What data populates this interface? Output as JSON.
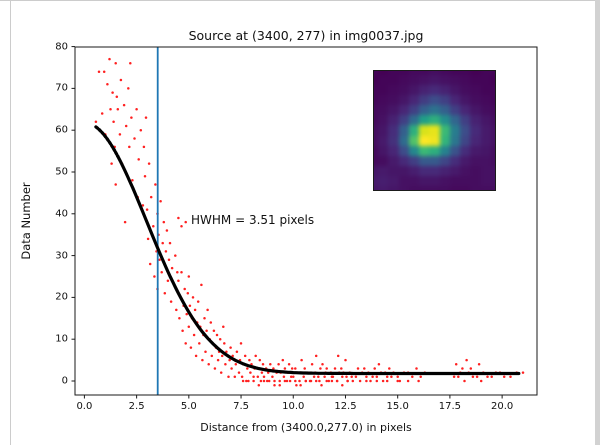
{
  "window": {
    "background": "#ffffff",
    "border_color": "#cccccc",
    "scrollbar_color": "#d2d2d2"
  },
  "chart_data": {
    "type": "scatter",
    "title": "Source at (3400, 277) in img0037.jpg",
    "xlabel": "Distance from (3400.0,277.0) in pixels",
    "ylabel": "Data Number",
    "xlim": [
      -0.45,
      21.67
    ],
    "ylim": [
      -3.35,
      79.9
    ],
    "grid": false,
    "legend": "none",
    "x_ticks": {
      "values": [
        0.0,
        2.5,
        5.0,
        7.5,
        10.0,
        12.5,
        15.0,
        17.5,
        20.0
      ],
      "labels": [
        "0.0",
        "2.5",
        "5.0",
        "7.5",
        "10.0",
        "12.5",
        "15.0",
        "17.5",
        "20.0"
      ]
    },
    "y_ticks": {
      "values": [
        0,
        10,
        20,
        30,
        40,
        50,
        60,
        70,
        80
      ],
      "labels": [
        "0",
        "10",
        "20",
        "30",
        "40",
        "50",
        "60",
        "70",
        "80"
      ]
    },
    "scatter_color": "#ff2020",
    "fit_color": "#000000",
    "vline_color": "#1f77b4",
    "vline_x": 3.51,
    "annotation": {
      "text": "HWHM = 3.51 pixels",
      "x": 5.1,
      "y": 38.0
    },
    "fit": {
      "model": "gaussian_plus_offset",
      "amplitude": 60.0,
      "sigma": 2.98,
      "offset": 1.8,
      "hwhm_pixels": 3.51,
      "x_range": [
        0.55,
        20.8
      ]
    },
    "scatter": [
      [
        0.55,
        62
      ],
      [
        0.7,
        74
      ],
      [
        0.85,
        64
      ],
      [
        0.95,
        74
      ],
      [
        1.0,
        59
      ],
      [
        1.1,
        71
      ],
      [
        1.2,
        77
      ],
      [
        1.25,
        65
      ],
      [
        1.3,
        52
      ],
      [
        1.35,
        69
      ],
      [
        1.4,
        62
      ],
      [
        1.45,
        56
      ],
      [
        1.5,
        76
      ],
      [
        1.5,
        47
      ],
      [
        1.55,
        68
      ],
      [
        1.6,
        65
      ],
      [
        1.7,
        59
      ],
      [
        1.75,
        72
      ],
      [
        1.8,
        52
      ],
      [
        1.9,
        66
      ],
      [
        1.95,
        38
      ],
      [
        2.0,
        61
      ],
      [
        2.1,
        70
      ],
      [
        2.15,
        56
      ],
      [
        2.2,
        76
      ],
      [
        2.25,
        63
      ],
      [
        2.3,
        48
      ],
      [
        2.4,
        58
      ],
      [
        2.5,
        65
      ],
      [
        2.55,
        44
      ],
      [
        2.6,
        53
      ],
      [
        2.7,
        60
      ],
      [
        2.8,
        42
      ],
      [
        2.85,
        56
      ],
      [
        2.9,
        49
      ],
      [
        2.95,
        63
      ],
      [
        3.0,
        41
      ],
      [
        3.05,
        34
      ],
      [
        3.1,
        52
      ],
      [
        3.15,
        28
      ],
      [
        3.2,
        44
      ],
      [
        3.3,
        37
      ],
      [
        3.35,
        25
      ],
      [
        3.4,
        47
      ],
      [
        3.45,
        31
      ],
      [
        3.5,
        40
      ],
      [
        3.5,
        22
      ],
      [
        3.55,
        35
      ],
      [
        3.6,
        29
      ],
      [
        3.65,
        43
      ],
      [
        3.7,
        26
      ],
      [
        3.75,
        33
      ],
      [
        3.8,
        38
      ],
      [
        3.85,
        21
      ],
      [
        3.9,
        31
      ],
      [
        3.95,
        36
      ],
      [
        4.0,
        24
      ],
      [
        4.05,
        29
      ],
      [
        4.1,
        33
      ],
      [
        4.15,
        19
      ],
      [
        4.2,
        27
      ],
      [
        4.3,
        23
      ],
      [
        4.35,
        30
      ],
      [
        4.4,
        17
      ],
      [
        4.45,
        26
      ],
      [
        4.5,
        39
      ],
      [
        4.65,
        37
      ],
      [
        4.85,
        38
      ],
      [
        4.5,
        24
      ],
      [
        4.55,
        15
      ],
      [
        4.6,
        20
      ],
      [
        4.65,
        26
      ],
      [
        4.7,
        12
      ],
      [
        4.75,
        18
      ],
      [
        4.8,
        22
      ],
      [
        4.85,
        9
      ],
      [
        4.9,
        16
      ],
      [
        4.95,
        21
      ],
      [
        5.0,
        13
      ],
      [
        5.0,
        25
      ],
      [
        5.05,
        18
      ],
      [
        5.1,
        8
      ],
      [
        5.15,
        15
      ],
      [
        5.2,
        20
      ],
      [
        5.25,
        11
      ],
      [
        5.3,
        17
      ],
      [
        5.35,
        6
      ],
      [
        5.4,
        14
      ],
      [
        5.45,
        19
      ],
      [
        5.5,
        9
      ],
      [
        5.55,
        13
      ],
      [
        5.6,
        23
      ],
      [
        5.65,
        5
      ],
      [
        5.7,
        11
      ],
      [
        5.75,
        15
      ],
      [
        5.8,
        7
      ],
      [
        5.85,
        12
      ],
      [
        5.9,
        17
      ],
      [
        5.95,
        4
      ],
      [
        6.0,
        10
      ],
      [
        6.05,
        14
      ],
      [
        6.1,
        6
      ],
      [
        6.15,
        9
      ],
      [
        6.2,
        12
      ],
      [
        6.25,
        3
      ],
      [
        6.3,
        8
      ],
      [
        6.35,
        11
      ],
      [
        6.4,
        5
      ],
      [
        6.45,
        7
      ],
      [
        6.5,
        10
      ],
      [
        6.55,
        2
      ],
      [
        6.6,
        6
      ],
      [
        6.65,
        13
      ],
      [
        6.7,
        9
      ],
      [
        6.75,
        4
      ],
      [
        6.8,
        7
      ],
      [
        6.9,
        1
      ],
      [
        6.95,
        5
      ],
      [
        7.0,
        8
      ],
      [
        7.05,
        3
      ],
      [
        7.1,
        6
      ],
      [
        7.2,
        1
      ],
      [
        7.25,
        4
      ],
      [
        7.3,
        7
      ],
      [
        7.4,
        2
      ],
      [
        7.45,
        5
      ],
      [
        7.5,
        9
      ],
      [
        7.55,
        1
      ],
      [
        7.6,
        4
      ],
      [
        7.7,
        6
      ],
      [
        7.75,
        0
      ],
      [
        7.8,
        3
      ],
      [
        7.9,
        5
      ],
      [
        7.95,
        2
      ],
      [
        8.0,
        4
      ],
      [
        8.1,
        1
      ],
      [
        8.15,
        3
      ],
      [
        8.2,
        6
      ],
      [
        8.3,
        1
      ],
      [
        8.35,
        3
      ],
      [
        8.4,
        5
      ],
      [
        8.45,
        0
      ],
      [
        8.5,
        2
      ],
      [
        8.55,
        4
      ],
      [
        8.6,
        1
      ],
      [
        8.7,
        3
      ],
      [
        8.75,
        0
      ],
      [
        8.8,
        2
      ],
      [
        8.9,
        4
      ],
      [
        9.0,
        1
      ],
      [
        9.05,
        3
      ],
      [
        9.1,
        -1
      ],
      [
        9.2,
        2
      ],
      [
        9.3,
        4
      ],
      [
        9.35,
        0
      ],
      [
        9.4,
        2
      ],
      [
        9.5,
        5
      ],
      [
        9.55,
        1
      ],
      [
        9.6,
        3
      ],
      [
        9.7,
        0
      ],
      [
        9.75,
        2
      ],
      [
        9.8,
        4
      ],
      [
        9.9,
        1
      ],
      [
        9.95,
        3
      ],
      [
        10.0,
        1
      ],
      [
        10.1,
        3
      ],
      [
        10.15,
        -1
      ],
      [
        10.2,
        2
      ],
      [
        10.3,
        0
      ],
      [
        10.35,
        2
      ],
      [
        10.4,
        5
      ],
      [
        10.5,
        1
      ],
      [
        10.55,
        3
      ],
      [
        10.6,
        0
      ],
      [
        10.7,
        2
      ],
      [
        10.8,
        0
      ],
      [
        10.85,
        2
      ],
      [
        10.9,
        4
      ],
      [
        11.0,
        1
      ],
      [
        11.05,
        2
      ],
      [
        11.1,
        6
      ],
      [
        11.2,
        1
      ],
      [
        11.25,
        0
      ],
      [
        11.3,
        3
      ],
      [
        11.4,
        4
      ],
      [
        11.5,
        1
      ],
      [
        11.55,
        2
      ],
      [
        11.6,
        3
      ],
      [
        11.7,
        0
      ],
      [
        11.8,
        2
      ],
      [
        11.85,
        1
      ],
      [
        11.9,
        1
      ],
      [
        12.0,
        3
      ],
      [
        12.1,
        0
      ],
      [
        12.15,
        6
      ],
      [
        12.2,
        2
      ],
      [
        12.3,
        3
      ],
      [
        12.35,
        1
      ],
      [
        12.4,
        2
      ],
      [
        12.5,
        5
      ],
      [
        12.55,
        1
      ],
      [
        12.6,
        0
      ],
      [
        12.7,
        2
      ],
      [
        12.8,
        1
      ],
      [
        7.6,
        0
      ],
      [
        7.85,
        0
      ],
      [
        8.1,
        0
      ],
      [
        8.35,
        -1
      ],
      [
        8.6,
        0
      ],
      [
        8.85,
        0
      ],
      [
        9.1,
        0
      ],
      [
        9.35,
        -1
      ],
      [
        9.6,
        0
      ],
      [
        9.85,
        0
      ],
      [
        10.1,
        0
      ],
      [
        10.35,
        -1
      ],
      [
        10.6,
        0
      ],
      [
        10.85,
        0
      ],
      [
        11.1,
        0
      ],
      [
        11.35,
        -1
      ],
      [
        11.6,
        0
      ],
      [
        11.85,
        0
      ],
      [
        12.1,
        0
      ],
      [
        12.35,
        -1
      ],
      [
        12.6,
        0
      ],
      [
        12.85,
        0
      ],
      [
        13.0,
        1
      ],
      [
        13.1,
        3
      ],
      [
        13.2,
        0
      ],
      [
        13.3,
        2
      ],
      [
        13.4,
        3
      ],
      [
        13.5,
        1
      ],
      [
        13.6,
        2
      ],
      [
        13.7,
        0
      ],
      [
        13.8,
        1
      ],
      [
        13.9,
        3
      ],
      [
        14.0,
        1
      ],
      [
        14.1,
        4
      ],
      [
        14.2,
        2
      ],
      [
        14.3,
        0
      ],
      [
        14.4,
        2
      ],
      [
        14.5,
        1
      ],
      [
        14.6,
        3
      ],
      [
        14.7,
        1
      ],
      [
        14.8,
        2
      ],
      [
        15.0,
        1
      ],
      [
        15.1,
        0
      ],
      [
        15.3,
        2
      ],
      [
        15.5,
        2
      ],
      [
        15.7,
        1
      ],
      [
        15.9,
        3
      ],
      [
        16.1,
        1
      ],
      [
        16.3,
        2
      ],
      [
        13.5,
        0
      ],
      [
        14.0,
        0
      ],
      [
        14.5,
        0
      ],
      [
        15.0,
        0
      ],
      [
        15.5,
        0
      ],
      [
        16.0,
        0
      ],
      [
        17.7,
        1
      ],
      [
        17.8,
        4
      ],
      [
        17.9,
        1
      ],
      [
        18.0,
        2
      ],
      [
        18.1,
        3
      ],
      [
        18.2,
        0
      ],
      [
        18.3,
        5
      ],
      [
        18.4,
        2
      ],
      [
        18.5,
        3
      ],
      [
        18.6,
        1
      ],
      [
        18.8,
        1
      ],
      [
        18.9,
        4
      ],
      [
        19.0,
        0
      ],
      [
        19.1,
        2
      ],
      [
        19.3,
        1
      ],
      [
        19.5,
        1
      ],
      [
        19.7,
        2
      ],
      [
        19.9,
        2
      ],
      [
        20.1,
        1
      ],
      [
        20.4,
        1
      ],
      [
        20.7,
        2
      ],
      [
        21.0,
        2
      ]
    ],
    "inset": {
      "description": "source cutout image",
      "colormap": "viridis",
      "colormap_stops": [
        "#440154",
        "#482878",
        "#3e4a89",
        "#31688e",
        "#26828e",
        "#1f9e89",
        "#35b779",
        "#6ece58",
        "#b5de2b",
        "#dfe318",
        "#fde725"
      ],
      "values": [
        [
          5,
          4,
          5,
          5,
          6,
          6,
          7,
          6,
          5,
          5,
          4,
          5,
          5
        ],
        [
          4,
          5,
          5,
          6,
          7,
          8,
          9,
          8,
          7,
          6,
          5,
          5,
          4
        ],
        [
          5,
          5,
          6,
          7,
          9,
          12,
          14,
          12,
          9,
          7,
          6,
          5,
          5
        ],
        [
          5,
          6,
          7,
          9,
          13,
          19,
          24,
          20,
          13,
          9,
          7,
          6,
          5
        ],
        [
          6,
          7,
          9,
          13,
          20,
          30,
          36,
          30,
          20,
          13,
          9,
          7,
          6
        ],
        [
          6,
          8,
          12,
          20,
          34,
          52,
          58,
          46,
          32,
          20,
          12,
          9,
          7
        ],
        [
          7,
          9,
          15,
          30,
          58,
          88,
          92,
          62,
          40,
          24,
          14,
          10,
          8
        ],
        [
          7,
          10,
          16,
          34,
          66,
          99,
          95,
          60,
          38,
          22,
          13,
          10,
          8
        ],
        [
          6,
          9,
          13,
          24,
          44,
          62,
          58,
          42,
          26,
          15,
          10,
          9,
          7
        ],
        [
          6,
          7,
          10,
          14,
          20,
          28,
          28,
          22,
          15,
          10,
          8,
          8,
          7
        ],
        [
          9,
          10,
          9,
          9,
          11,
          14,
          14,
          12,
          10,
          8,
          7,
          8,
          8
        ],
        [
          10,
          11,
          10,
          8,
          8,
          9,
          9,
          8,
          7,
          7,
          7,
          8,
          8
        ],
        [
          9,
          10,
          9,
          8,
          7,
          7,
          7,
          7,
          6,
          6,
          7,
          7,
          7
        ]
      ]
    }
  }
}
